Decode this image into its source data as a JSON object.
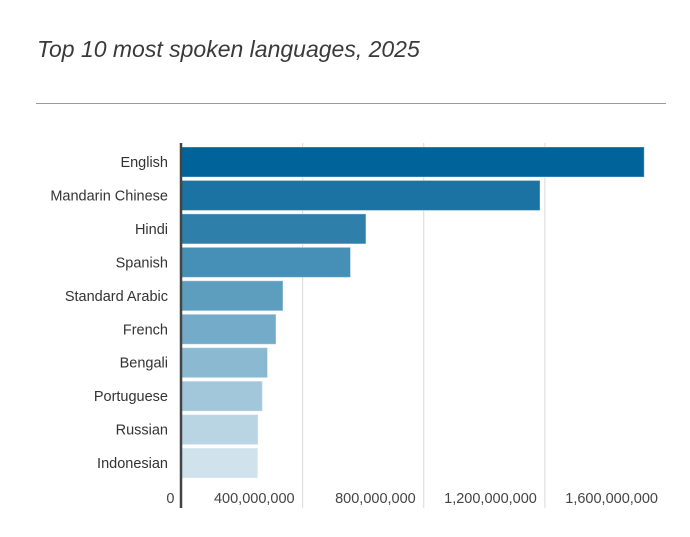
{
  "chart_data": {
    "type": "bar",
    "orientation": "horizontal",
    "title": "Top 10 most spoken languages, 2025",
    "categories": [
      "English",
      "Mandarin Chinese",
      "Hindi",
      "Spanish",
      "Standard Arabic",
      "French",
      "Bengali",
      "Portuguese",
      "Russian",
      "Indonesian"
    ],
    "values": [
      1528000000,
      1184000000,
      609000000,
      558000000,
      335000000,
      312000000,
      284000000,
      267000000,
      253000000,
      252000000
    ],
    "xlim": [
      0,
      1600000000
    ],
    "xticks": [
      0,
      400000000,
      800000000,
      1200000000,
      1600000000
    ],
    "xtick_labels": [
      "0",
      "400,000,000",
      "800,000,000",
      "1,200,000,000",
      "1,600,000,000"
    ],
    "xlabel": "",
    "ylabel": "",
    "grid": "vertical",
    "colors": [
      "#00639a",
      "#1a73a2",
      "#2e80aa",
      "#468fb6",
      "#5d9ebf",
      "#74abc8",
      "#8bb9d1",
      "#a2c7da",
      "#b9d5e3",
      "#d0e2ec"
    ]
  }
}
